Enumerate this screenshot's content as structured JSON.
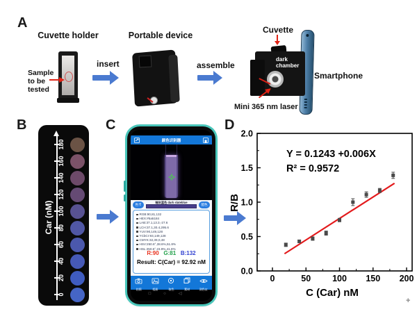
{
  "a": {
    "panel_label": "A",
    "cuvette_holder_title": "Cuvette holder",
    "portable_device_title": "Portable device",
    "sample_line1": "Sample",
    "sample_line2": "to be",
    "sample_line3": "tested",
    "insert_label": "insert",
    "assemble_label": "assemble",
    "cuvette_label": "Cuvette",
    "dark_line1": "dark",
    "dark_line2": "chamber",
    "smartphone_label": "Smartphone",
    "laser_label": "Mini 365 nm laser"
  },
  "b": {
    "panel_label": "B",
    "axis_title": "Car (nM)",
    "ticks": [
      "0",
      "20",
      "40",
      "60",
      "80",
      "100",
      "120",
      "140",
      "160",
      "180"
    ],
    "dot_colors": [
      "#4565c6",
      "#3f5cc0",
      "#4659b6",
      "#4b58ad",
      "#5057a5",
      "#585292",
      "#654a74",
      "#6d4a69",
      "#7b5268",
      "#6b5345"
    ]
  },
  "c": {
    "panel_label": "C",
    "app_title": "颜色识别器",
    "btn_left": "色卡",
    "btn_right": "配色",
    "color_name": "暗灰蓝色 dark slateblue",
    "swatch_color": "#483d8b",
    "lines": [
      "RGB:90,81,132",
      "HEX:#5a5184",
      "LAB:37.1,13.3,-27.6",
      "LCH:37.1,30.4,295.6",
      "YUV:90,149,128",
      "YCbCr:93,149,128",
      "CMYK:32,39,0,48",
      "HSV:250.6°,38.6%,51.8%",
      "HSL:250.6°,23.9%,41.8%"
    ],
    "rgb_r": "R:90",
    "rgb_g": "G:81",
    "rgb_b": "B:132",
    "result": "Result: C(Car) = 92.92 nM",
    "toolbar": [
      {
        "icon": "camera-icon",
        "label": "拍照"
      },
      {
        "icon": "album-icon",
        "label": "相册"
      },
      {
        "icon": "pick-color-icon",
        "label": "取色"
      },
      {
        "icon": "material-icon",
        "label": "素材"
      },
      {
        "icon": "colorimeter-icon",
        "label": "测色仪"
      }
    ],
    "nav": [
      "□",
      "○",
      "◁"
    ]
  },
  "d": {
    "panel_label": "D"
  },
  "colors": {
    "arrow_blue": "#4a7ad0",
    "app_blue": "#1377d8",
    "fit_red": "#e31a1c"
  },
  "cursor_artifact": "+",
  "chart_data": {
    "type": "scatter",
    "title": "",
    "xlabel": "C (Car) nM",
    "ylabel": "R/B",
    "xlim": [
      0,
      200
    ],
    "ylim": [
      0,
      2
    ],
    "x_ticks": [
      "0",
      "50",
      "100",
      "150",
      "200"
    ],
    "y_ticks": [
      "0.0",
      "0.5",
      "1.0",
      "1.5",
      "2.0"
    ],
    "x": [
      20,
      40,
      60,
      80,
      100,
      120,
      140,
      160,
      180
    ],
    "y": [
      0.38,
      0.43,
      0.47,
      0.55,
      0.74,
      1.0,
      1.11,
      1.17,
      1.39
    ],
    "yerr": [
      0.025,
      0.02,
      0.025,
      0.03,
      0.025,
      0.05,
      0.04,
      0.03,
      0.045
    ],
    "fit_line": {
      "x1": 18,
      "y1": 0.25,
      "x2": 182,
      "y2": 1.275,
      "color": "#e31a1c"
    },
    "annotation": [
      "Y = 0.1243 +0.006X",
      "R² = 0.9572"
    ],
    "marker_color": "#4a4a4a",
    "grid": false,
    "legend": null
  }
}
